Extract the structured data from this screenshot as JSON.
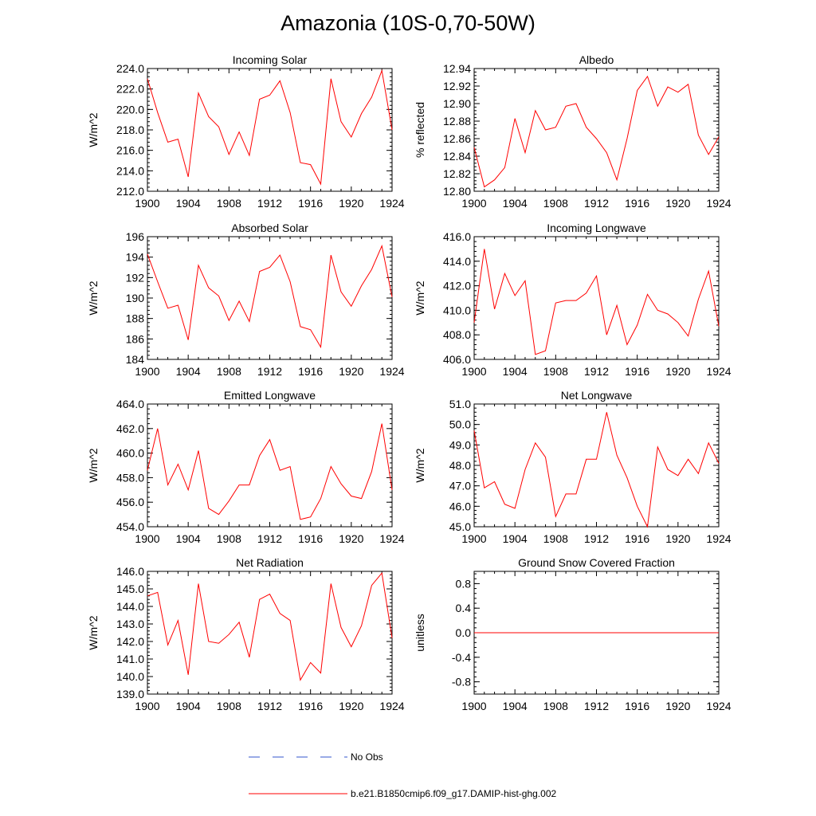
{
  "page_title": "Amazonia (10S-0,70-50W)",
  "legend": {
    "entries": [
      {
        "label": "No Obs",
        "color": "#3355cc",
        "dashed": true
      },
      {
        "label": "b.e21.B1850cmip6.f09_g17.DAMIP-hist-ghg.002",
        "color": "#ff0000",
        "dashed": false
      }
    ]
  },
  "chart_data": [
    {
      "type": "line",
      "title": "Incoming Solar",
      "xlabel": "",
      "ylabel": "W/m^2",
      "xlim": [
        1900,
        1924
      ],
      "ylim": [
        212,
        224
      ],
      "xticks": [
        "1900",
        "1904",
        "1908",
        "1912",
        "1916",
        "1920",
        "1924"
      ],
      "yticks": [
        "212.0",
        "214.0",
        "216.0",
        "218.0",
        "220.0",
        "222.0",
        "224.0"
      ],
      "series": [
        {
          "color": "#ff0000",
          "x": [
            1900,
            1901,
            1902,
            1903,
            1904,
            1905,
            1906,
            1907,
            1908,
            1909,
            1910,
            1911,
            1912,
            1913,
            1914,
            1915,
            1916,
            1917,
            1918,
            1919,
            1920,
            1921,
            1922,
            1923,
            1924
          ],
          "values": [
            223.0,
            219.7,
            216.8,
            217.1,
            213.4,
            221.6,
            219.3,
            218.3,
            215.6,
            217.8,
            215.5,
            221.0,
            221.4,
            222.8,
            219.7,
            214.8,
            214.6,
            212.7,
            223.0,
            218.8,
            217.3,
            219.6,
            221.2,
            223.8,
            218.0
          ]
        }
      ]
    },
    {
      "type": "line",
      "title": "Albedo",
      "xlabel": "",
      "ylabel": "% reflected",
      "xlim": [
        1900,
        1924
      ],
      "ylim": [
        12.8,
        12.94
      ],
      "xticks": [
        "1900",
        "1904",
        "1908",
        "1912",
        "1916",
        "1920",
        "1924"
      ],
      "yticks": [
        "12.80",
        "12.82",
        "12.84",
        "12.86",
        "12.88",
        "12.90",
        "12.92",
        "12.94"
      ],
      "series": [
        {
          "color": "#ff0000",
          "x": [
            1900,
            1901,
            1902,
            1903,
            1904,
            1905,
            1906,
            1907,
            1908,
            1909,
            1910,
            1911,
            1912,
            1913,
            1914,
            1915,
            1916,
            1917,
            1918,
            1919,
            1920,
            1921,
            1922,
            1923,
            1924
          ],
          "values": [
            12.85,
            12.805,
            12.813,
            12.827,
            12.883,
            12.844,
            12.892,
            12.87,
            12.873,
            12.897,
            12.9,
            12.873,
            12.86,
            12.844,
            12.813,
            12.86,
            12.915,
            12.931,
            12.897,
            12.919,
            12.913,
            12.922,
            12.864,
            12.842,
            12.862
          ]
        }
      ]
    },
    {
      "type": "line",
      "title": "Absorbed Solar",
      "xlabel": "",
      "ylabel": "W/m^2",
      "xlim": [
        1900,
        1924
      ],
      "ylim": [
        184,
        196
      ],
      "xticks": [
        "1900",
        "1904",
        "1908",
        "1912",
        "1916",
        "1920",
        "1924"
      ],
      "yticks": [
        "184",
        "186",
        "188",
        "190",
        "192",
        "194",
        "196"
      ],
      "series": [
        {
          "color": "#ff0000",
          "x": [
            1900,
            1901,
            1902,
            1903,
            1904,
            1905,
            1906,
            1907,
            1908,
            1909,
            1910,
            1911,
            1912,
            1913,
            1914,
            1915,
            1916,
            1917,
            1918,
            1919,
            1920,
            1921,
            1922,
            1923,
            1924
          ],
          "values": [
            194.3,
            191.6,
            189.0,
            189.3,
            185.9,
            193.2,
            191.0,
            190.2,
            187.8,
            189.7,
            187.7,
            192.6,
            193.0,
            194.2,
            191.6,
            187.2,
            186.9,
            185.2,
            194.2,
            190.6,
            189.2,
            191.2,
            192.8,
            195.1,
            190.1
          ]
        }
      ]
    },
    {
      "type": "line",
      "title": "Incoming Longwave",
      "xlabel": "",
      "ylabel": "W/m^2",
      "xlim": [
        1900,
        1924
      ],
      "ylim": [
        406,
        416
      ],
      "xticks": [
        "1900",
        "1904",
        "1908",
        "1912",
        "1916",
        "1920",
        "1924"
      ],
      "yticks": [
        "406.0",
        "408.0",
        "410.0",
        "412.0",
        "414.0",
        "416.0"
      ],
      "series": [
        {
          "color": "#ff0000",
          "x": [
            1900,
            1901,
            1902,
            1903,
            1904,
            1905,
            1906,
            1907,
            1908,
            1909,
            1910,
            1911,
            1912,
            1913,
            1914,
            1915,
            1916,
            1917,
            1918,
            1919,
            1920,
            1921,
            1922,
            1923,
            1924
          ],
          "values": [
            409.0,
            415.0,
            410.1,
            413.0,
            411.2,
            412.4,
            406.4,
            406.7,
            410.6,
            410.8,
            410.8,
            411.4,
            412.8,
            408.0,
            410.4,
            407.2,
            408.8,
            411.3,
            410.0,
            409.7,
            409.0,
            407.9,
            410.9,
            413.2,
            408.7
          ]
        }
      ]
    },
    {
      "type": "line",
      "title": "Emitted Longwave",
      "xlabel": "",
      "ylabel": "W/m^2",
      "xlim": [
        1900,
        1924
      ],
      "ylim": [
        454,
        464
      ],
      "xticks": [
        "1900",
        "1904",
        "1908",
        "1912",
        "1916",
        "1920",
        "1924"
      ],
      "yticks": [
        "454.0",
        "456.0",
        "458.0",
        "460.0",
        "462.0",
        "464.0"
      ],
      "series": [
        {
          "color": "#ff0000",
          "x": [
            1900,
            1901,
            1902,
            1903,
            1904,
            1905,
            1906,
            1907,
            1908,
            1909,
            1910,
            1911,
            1912,
            1913,
            1914,
            1915,
            1916,
            1917,
            1918,
            1919,
            1920,
            1921,
            1922,
            1923,
            1924
          ],
          "values": [
            458.6,
            462.0,
            457.4,
            459.1,
            457.0,
            460.2,
            455.5,
            455.0,
            456.1,
            457.4,
            457.4,
            459.8,
            461.1,
            458.6,
            458.9,
            454.6,
            454.8,
            456.3,
            458.9,
            457.5,
            456.5,
            456.3,
            458.5,
            462.4,
            457.0
          ]
        }
      ]
    },
    {
      "type": "line",
      "title": "Net Longwave",
      "xlabel": "",
      "ylabel": "W/m^2",
      "xlim": [
        1900,
        1924
      ],
      "ylim": [
        45,
        51
      ],
      "xticks": [
        "1900",
        "1904",
        "1908",
        "1912",
        "1916",
        "1920",
        "1924"
      ],
      "yticks": [
        "45.0",
        "46.0",
        "47.0",
        "48.0",
        "49.0",
        "50.0",
        "51.0"
      ],
      "series": [
        {
          "color": "#ff0000",
          "x": [
            1900,
            1901,
            1902,
            1903,
            1904,
            1905,
            1906,
            1907,
            1908,
            1909,
            1910,
            1911,
            1912,
            1913,
            1914,
            1915,
            1916,
            1917,
            1918,
            1919,
            1920,
            1921,
            1922,
            1923,
            1924
          ],
          "values": [
            49.7,
            46.9,
            47.2,
            46.1,
            45.9,
            47.8,
            49.1,
            48.4,
            45.5,
            46.6,
            46.6,
            48.3,
            48.3,
            50.6,
            48.5,
            47.4,
            46.0,
            45.0,
            48.9,
            47.8,
            47.5,
            48.3,
            47.6,
            49.1,
            48.1
          ]
        }
      ]
    },
    {
      "type": "line",
      "title": "Net Radiation",
      "xlabel": "",
      "ylabel": "W/m^2",
      "xlim": [
        1900,
        1924
      ],
      "ylim": [
        139,
        146
      ],
      "xticks": [
        "1900",
        "1904",
        "1908",
        "1912",
        "1916",
        "1920",
        "1924"
      ],
      "yticks": [
        "139.0",
        "140.0",
        "141.0",
        "142.0",
        "143.0",
        "144.0",
        "145.0",
        "146.0"
      ],
      "series": [
        {
          "color": "#ff0000",
          "x": [
            1900,
            1901,
            1902,
            1903,
            1904,
            1905,
            1906,
            1907,
            1908,
            1909,
            1910,
            1911,
            1912,
            1913,
            1914,
            1915,
            1916,
            1917,
            1918,
            1919,
            1920,
            1921,
            1922,
            1923,
            1924
          ],
          "values": [
            144.6,
            144.8,
            141.8,
            143.2,
            140.1,
            145.3,
            142.0,
            141.9,
            142.4,
            143.1,
            141.1,
            144.4,
            144.7,
            143.6,
            143.2,
            139.8,
            140.8,
            140.2,
            145.3,
            142.8,
            141.7,
            142.9,
            145.2,
            145.9,
            142.2
          ]
        }
      ]
    },
    {
      "type": "line",
      "title": "Ground Snow Covered Fraction",
      "xlabel": "",
      "ylabel": "unitless",
      "xlim": [
        1900,
        1924
      ],
      "ylim": [
        -1.0,
        1.0
      ],
      "xticks": [
        "1900",
        "1904",
        "1908",
        "1912",
        "1916",
        "1920",
        "1924"
      ],
      "yticks": [
        "-0.8",
        "-0.4",
        "0.0",
        "0.4",
        "0.8"
      ],
      "ytick_values": [
        -0.8,
        -0.4,
        0.0,
        0.4,
        0.8
      ],
      "series": [
        {
          "color": "#ff0000",
          "x": [
            1900,
            1924
          ],
          "values": [
            0.0,
            0.0
          ]
        }
      ]
    }
  ]
}
